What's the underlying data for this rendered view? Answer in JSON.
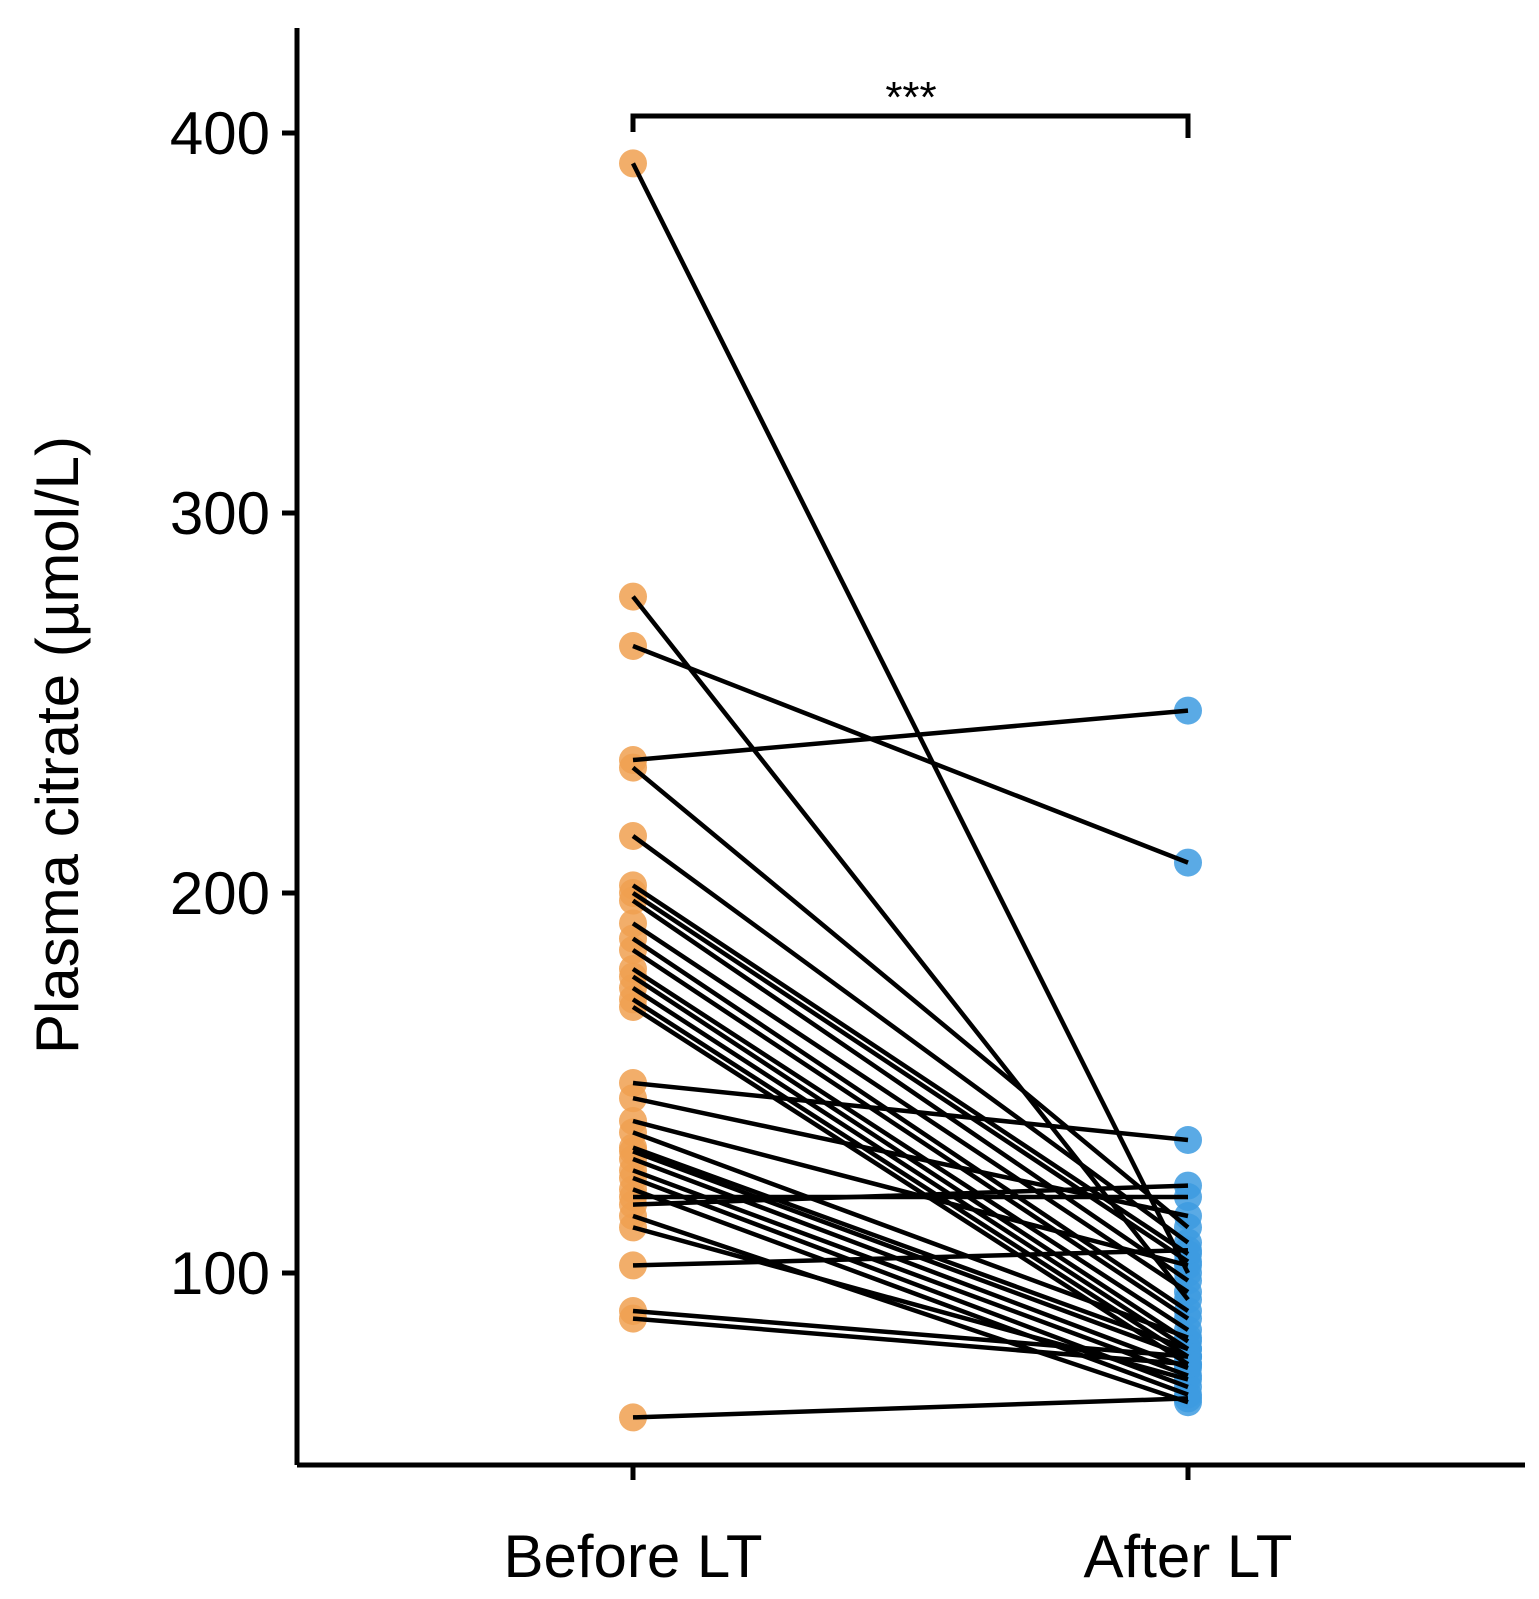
{
  "chart_data": {
    "type": "scatter",
    "subtype": "paired-dot-plot",
    "title": "",
    "xlabel": "",
    "ylabel": "Plasma citrate (µmol/L)",
    "ylim": [
      45,
      427
    ],
    "yticks": [
      100,
      200,
      300,
      400
    ],
    "categories": [
      "Before LT",
      "After LT"
    ],
    "significance": "***",
    "colors": {
      "before": "#F0A050",
      "after": "#3D9BE0",
      "line": "#000000"
    },
    "pairs": [
      {
        "before": 392,
        "after": 100
      },
      {
        "before": 278,
        "after": 93
      },
      {
        "before": 265,
        "after": 208
      },
      {
        "before": 235,
        "after": 248
      },
      {
        "before": 233,
        "after": 112
      },
      {
        "before": 215,
        "after": 108
      },
      {
        "before": 202,
        "after": 105
      },
      {
        "before": 200,
        "after": 103
      },
      {
        "before": 198,
        "after": 98
      },
      {
        "before": 192,
        "after": 95
      },
      {
        "before": 188,
        "after": 90
      },
      {
        "before": 185,
        "after": 88
      },
      {
        "before": 180,
        "after": 85
      },
      {
        "before": 178,
        "after": 82
      },
      {
        "before": 175,
        "after": 80
      },
      {
        "before": 172,
        "after": 78
      },
      {
        "before": 170,
        "after": 76
      },
      {
        "before": 150,
        "after": 135
      },
      {
        "before": 146,
        "after": 115
      },
      {
        "before": 140,
        "after": 102
      },
      {
        "before": 137,
        "after": 83
      },
      {
        "before": 133,
        "after": 80
      },
      {
        "before": 132,
        "after": 78
      },
      {
        "before": 130,
        "after": 75
      },
      {
        "before": 127,
        "after": 73
      },
      {
        "before": 125,
        "after": 70
      },
      {
        "before": 122,
        "after": 68
      },
      {
        "before": 120,
        "after": 120
      },
      {
        "before": 118,
        "after": 123
      },
      {
        "before": 115,
        "after": 66
      },
      {
        "before": 112,
        "after": 72
      },
      {
        "before": 102,
        "after": 106
      },
      {
        "before": 90,
        "after": 78
      },
      {
        "before": 88,
        "after": 76
      },
      {
        "before": 62,
        "after": 67
      }
    ]
  }
}
